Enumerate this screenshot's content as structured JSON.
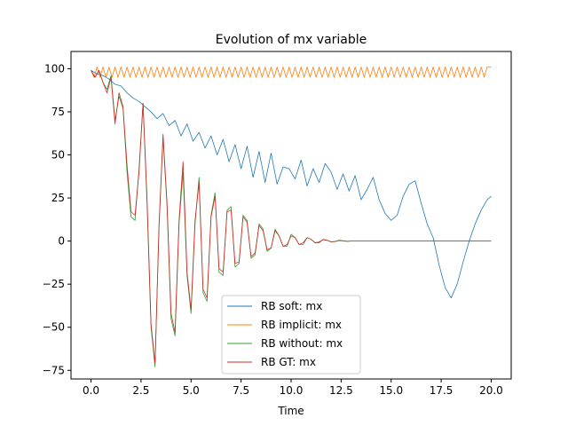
{
  "chart_data": {
    "type": "line",
    "title": "Evolution of mx variable",
    "xlabel": "Time",
    "ylabel": "",
    "xlim": [
      -1.0,
      21.0
    ],
    "ylim": [
      -80.0,
      110.0
    ],
    "xticks": [
      0,
      2.5,
      5,
      7.5,
      10,
      12.5,
      15,
      17.5,
      20
    ],
    "xtick_labels": [
      "0.0",
      "2.5",
      "5.0",
      "7.5",
      "10.0",
      "12.5",
      "15.0",
      "17.5",
      "20.0"
    ],
    "yticks": [
      -75,
      -50,
      -25,
      0,
      25,
      50,
      75,
      100
    ],
    "ytick_labels": [
      "−75",
      "−50",
      "−25",
      "0",
      "25",
      "50",
      "75",
      "100"
    ],
    "grid": false,
    "legend_position": "lower-center",
    "series": [
      {
        "name": "RB soft: mx",
        "color": "#1f77b4",
        "x": [
          0.0,
          0.3,
          0.6,
          0.9,
          1.2,
          1.5,
          1.8,
          2.1,
          2.4,
          2.7,
          3.0,
          3.3,
          3.6,
          3.9,
          4.2,
          4.5,
          4.8,
          5.1,
          5.4,
          5.7,
          6.0,
          6.3,
          6.6,
          6.9,
          7.2,
          7.5,
          7.8,
          8.1,
          8.4,
          8.7,
          9.0,
          9.3,
          9.6,
          9.9,
          10.2,
          10.5,
          10.8,
          11.1,
          11.4,
          11.7,
          12.0,
          12.3,
          12.6,
          12.9,
          13.2,
          13.5,
          13.8,
          14.1,
          14.4,
          14.7,
          15.0,
          15.3,
          15.6,
          15.9,
          16.2,
          16.5,
          16.8,
          17.1,
          17.4,
          17.7,
          18.0,
          18.3,
          18.6,
          18.9,
          19.2,
          19.5,
          19.8,
          20.0
        ],
        "y": [
          99,
          97,
          96,
          94,
          91,
          90,
          86,
          83,
          81,
          78,
          75,
          71,
          74,
          67,
          70,
          61,
          68,
          58,
          63,
          54,
          61,
          50,
          59,
          46,
          56,
          42,
          55,
          37,
          52,
          34,
          51,
          33,
          43,
          42,
          36,
          47,
          32,
          42,
          34,
          45,
          40,
          30,
          39,
          29,
          38,
          24,
          30,
          37,
          24,
          16,
          12,
          15,
          26,
          33,
          35,
          22,
          10,
          2,
          -14,
          -27,
          -33,
          -25,
          -12,
          0,
          10,
          18,
          24,
          26
        ]
      },
      {
        "name": "RB implicit: mx",
        "color": "#ff7f0e",
        "x": [
          0.0,
          0.15,
          0.3,
          0.45,
          0.6,
          0.75,
          0.9,
          1.05,
          1.2,
          1.35,
          1.5,
          1.65,
          1.8,
          1.95,
          2.1,
          2.25,
          2.4,
          2.55,
          2.7,
          2.85,
          3.0,
          3.15,
          3.3,
          3.45,
          3.6,
          3.75,
          3.9,
          4.05,
          4.2,
          4.35,
          4.5,
          4.65,
          4.8,
          4.95,
          5.1,
          5.25,
          5.4,
          5.55,
          5.7,
          5.85,
          6.0,
          6.15,
          6.3,
          6.45,
          6.6,
          6.75,
          6.9,
          7.05,
          7.2,
          7.35,
          7.5,
          7.65,
          7.8,
          7.95,
          8.1,
          8.25,
          8.4,
          8.55,
          8.7,
          8.85,
          9.0,
          9.15,
          9.3,
          9.45,
          9.6,
          9.75,
          9.9,
          10.05,
          10.2,
          10.35,
          10.5,
          10.65,
          10.8,
          10.95,
          11.1,
          11.25,
          11.4,
          11.55,
          11.7,
          11.85,
          12.0,
          12.15,
          12.3,
          12.45,
          12.6,
          12.75,
          12.9,
          13.05,
          13.2,
          13.35,
          13.5,
          13.65,
          13.8,
          13.95,
          14.1,
          14.25,
          14.4,
          14.55,
          14.7,
          14.85,
          15.0,
          15.15,
          15.3,
          15.45,
          15.6,
          15.75,
          15.9,
          16.05,
          16.2,
          16.35,
          16.5,
          16.65,
          16.8,
          16.95,
          17.1,
          17.25,
          17.4,
          17.55,
          17.7,
          17.85,
          18.0,
          18.15,
          18.3,
          18.45,
          18.6,
          18.75,
          18.9,
          19.05,
          19.2,
          19.35,
          19.5,
          19.65,
          19.8,
          20.0
        ],
        "y": [
          99,
          95,
          101,
          95,
          101,
          95,
          101,
          95,
          101,
          95,
          101,
          95,
          101,
          95,
          101,
          95,
          101,
          95,
          101,
          95,
          101,
          95,
          101,
          95,
          101,
          95,
          101,
          95,
          101,
          95,
          101,
          95,
          101,
          95,
          101,
          95,
          101,
          95,
          101,
          95,
          101,
          95,
          101,
          95,
          101,
          95,
          101,
          95,
          101,
          95,
          101,
          95,
          101,
          95,
          101,
          95,
          101,
          95,
          101,
          95,
          101,
          95,
          101,
          95,
          101,
          95,
          101,
          95,
          101,
          95,
          101,
          95,
          101,
          95,
          101,
          95,
          101,
          95,
          101,
          95,
          101,
          95,
          101,
          95,
          101,
          95,
          101,
          95,
          101,
          95,
          101,
          95,
          101,
          95,
          101,
          95,
          101,
          95,
          101,
          95,
          101,
          95,
          101,
          95,
          101,
          95,
          101,
          95,
          101,
          95,
          101,
          95,
          101,
          95,
          101,
          95,
          101,
          95,
          101,
          95,
          101,
          95,
          101,
          95,
          101,
          95,
          101,
          95,
          101,
          95,
          101,
          95,
          101,
          101
        ]
      },
      {
        "name": "RB without: mx",
        "color": "#2ca02c",
        "x": [
          0.0,
          0.2,
          0.4,
          0.6,
          0.8,
          1.0,
          1.2,
          1.4,
          1.6,
          1.8,
          2.0,
          2.2,
          2.4,
          2.6,
          2.8,
          3.0,
          3.2,
          3.4,
          3.6,
          3.8,
          4.0,
          4.2,
          4.4,
          4.6,
          4.8,
          5.0,
          5.2,
          5.4,
          5.6,
          5.8,
          6.0,
          6.2,
          6.4,
          6.6,
          6.8,
          7.0,
          7.2,
          7.4,
          7.6,
          7.8,
          8.0,
          8.2,
          8.4,
          8.6,
          8.8,
          9.0,
          9.2,
          9.4,
          9.6,
          9.8,
          10.0,
          10.2,
          10.4,
          10.6,
          10.8,
          11.0,
          11.2,
          11.4,
          11.6,
          11.8,
          12.0,
          12.2,
          12.4,
          12.6,
          12.8,
          13.0,
          13.4,
          14.0,
          15.0,
          16.0,
          17.0,
          18.0,
          19.0,
          20.0
        ],
        "y": [
          99,
          95,
          99,
          92,
          88,
          96,
          70,
          84,
          77,
          40,
          14,
          12,
          42,
          80,
          22,
          -50,
          -73,
          10,
          60,
          20,
          -45,
          -55,
          10,
          40,
          -20,
          -42,
          10,
          37,
          -30,
          -35,
          15,
          28,
          -18,
          -20,
          18,
          20,
          -15,
          -13,
          15,
          12,
          -10,
          -8,
          10,
          7,
          -6,
          -4,
          7,
          3,
          -3,
          -3,
          4,
          2,
          -2,
          -2,
          2,
          1,
          -1,
          -1,
          1,
          0.5,
          -0.5,
          -0.3,
          0.5,
          0.2,
          -0.2,
          0,
          0,
          0,
          0,
          0,
          0,
          0,
          0,
          0
        ]
      },
      {
        "name": "RB GT: mx",
        "color": "#d62728",
        "x": [
          0.0,
          0.2,
          0.4,
          0.6,
          0.8,
          1.0,
          1.2,
          1.4,
          1.6,
          1.8,
          2.0,
          2.2,
          2.4,
          2.6,
          2.8,
          3.0,
          3.2,
          3.4,
          3.6,
          3.8,
          4.0,
          4.2,
          4.4,
          4.6,
          4.8,
          5.0,
          5.2,
          5.4,
          5.6,
          5.8,
          6.0,
          6.2,
          6.4,
          6.6,
          6.8,
          7.0,
          7.2,
          7.4,
          7.6,
          7.8,
          8.0,
          8.2,
          8.4,
          8.6,
          8.8,
          9.0,
          9.2,
          9.4,
          9.6,
          9.8,
          10.0,
          10.2,
          10.4,
          10.6,
          10.8,
          11.0,
          11.2,
          11.4,
          11.6,
          11.8,
          12.0,
          12.2,
          12.4,
          12.6,
          12.8,
          13.0,
          13.4,
          14.0,
          15.0,
          16.0,
          17.0,
          18.0,
          19.0,
          20.0
        ],
        "y": [
          99,
          95,
          99,
          92,
          86,
          95,
          68,
          86,
          78,
          44,
          17,
          15,
          40,
          80,
          25,
          -48,
          -71,
          8,
          62,
          22,
          -42,
          -53,
          12,
          46,
          -18,
          -40,
          12,
          34,
          -28,
          -33,
          14,
          26,
          -16,
          -18,
          17,
          18,
          -13,
          -12,
          14,
          11,
          -9,
          -7,
          9,
          6,
          -5,
          -4,
          6,
          3,
          -3,
          -2,
          3,
          2,
          -2,
          -1,
          2,
          1,
          -1,
          -0.5,
          0.8,
          0.4,
          -0.4,
          -0.2,
          0.3,
          0.1,
          -0.1,
          0,
          0,
          0,
          0,
          0,
          0,
          0,
          0,
          0
        ]
      }
    ]
  }
}
